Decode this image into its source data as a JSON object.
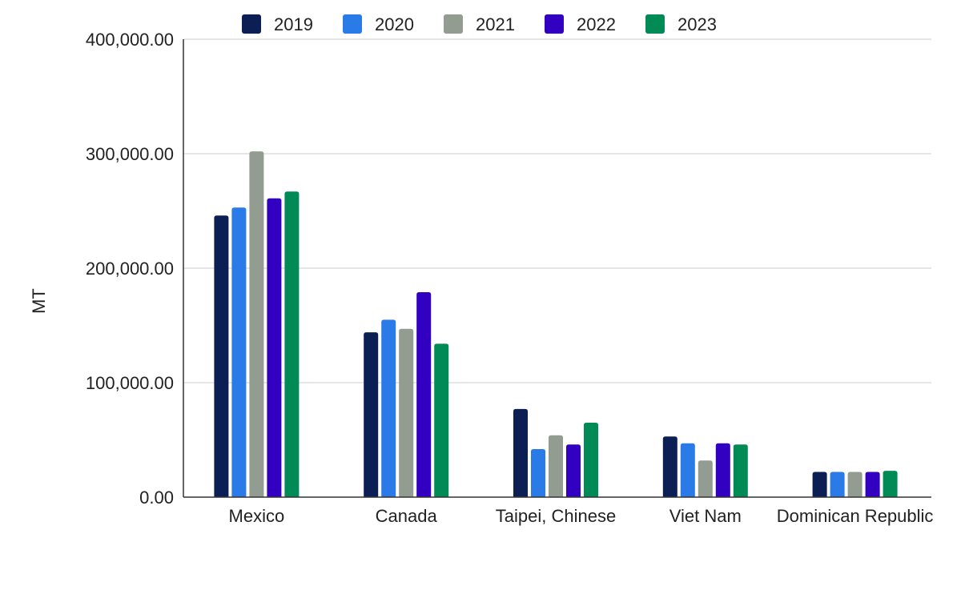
{
  "chart_data": {
    "type": "bar",
    "title": "",
    "xlabel": "",
    "ylabel": "MT",
    "ylim": [
      0,
      400000
    ],
    "yticks": [
      0,
      100000,
      200000,
      300000,
      400000
    ],
    "ytick_labels": [
      "0.00",
      "100,000.00",
      "200,000.00",
      "300,000.00",
      "400,000.00"
    ],
    "grid": true,
    "legend_position": "top",
    "categories": [
      "Mexico",
      "Canada",
      "Taipei, Chinese",
      "Viet Nam",
      "Dominican Republic"
    ],
    "series": [
      {
        "name": "2019",
        "color": "#0b1f55",
        "values": [
          246000,
          144000,
          77000,
          53000,
          22000
        ]
      },
      {
        "name": "2020",
        "color": "#2a7ae8",
        "values": [
          253000,
          155000,
          42000,
          47000,
          22000
        ]
      },
      {
        "name": "2021",
        "color": "#929c90",
        "values": [
          302000,
          147000,
          54000,
          32000,
          22000
        ]
      },
      {
        "name": "2022",
        "color": "#3200c0",
        "values": [
          261000,
          179000,
          46000,
          47000,
          22000
        ]
      },
      {
        "name": "2023",
        "color": "#008a55",
        "values": [
          267000,
          134000,
          65000,
          46000,
          23000
        ]
      }
    ]
  }
}
